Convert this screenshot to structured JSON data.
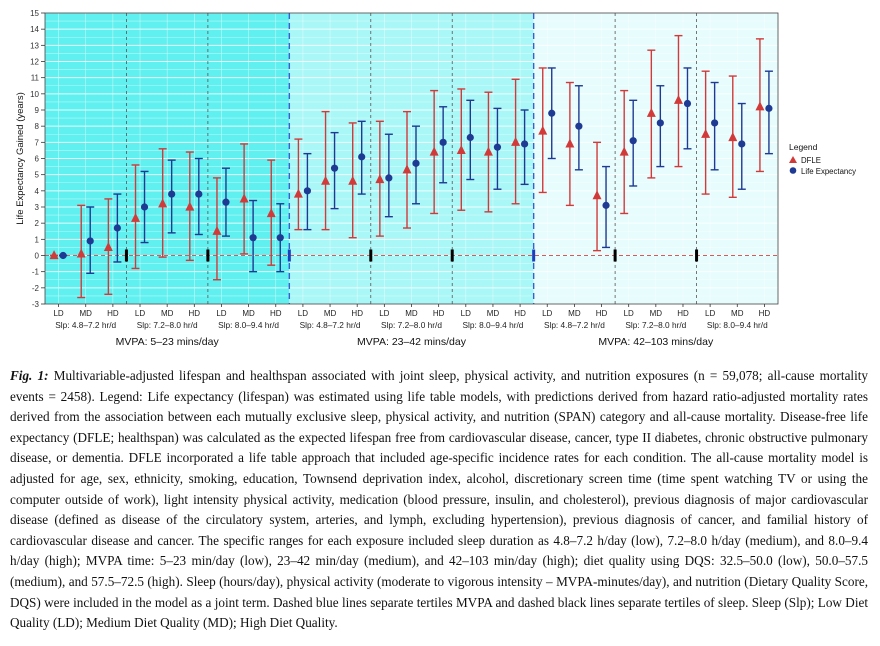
{
  "chart_data": {
    "type": "scatter",
    "title": "",
    "xlabel": "",
    "ylabel": "Life Expectancy Gained (years)",
    "ylim": [
      -3,
      15
    ],
    "yticks": [
      -3,
      -2,
      -1,
      0,
      1,
      2,
      3,
      4,
      5,
      6,
      7,
      8,
      9,
      10,
      11,
      12,
      13,
      14,
      15
    ],
    "grid": true,
    "legend": {
      "title": "Legend",
      "placement": "right",
      "entries": [
        {
          "name": "DFLE",
          "color": "#d23a3a",
          "marker": "triangle"
        },
        {
          "name": "Life Expectancy",
          "color": "#1f3a93",
          "marker": "circle"
        }
      ]
    },
    "diet_labels": [
      "LD",
      "MD",
      "HD"
    ],
    "mvpa_groups": [
      {
        "label": "MVPA: 5–23 mins/day",
        "color": "#5ff0ef"
      },
      {
        "label": "MVPA: 23–42 mins/day",
        "color": "#a9f7f7"
      },
      {
        "label": "MVPA: 42–103 mins/day",
        "color": "#e7fcfd"
      }
    ],
    "sleep_labels": [
      "Slp: 4.8–7.2 hr/d",
      "Slp: 7.2–8.0 hr/d",
      "Slp: 8.0–9.4 hr/d",
      "Slp: 4.8–7.2 hr/d",
      "Slp: 7.2–8.0 hr/d",
      "Slp: 8.0–9.4 hr/d",
      "Slp: 4.8–7.2 hr/d",
      "Slp: 7.2–8.0 hr/d",
      "Slp: 8.0–9.4 hr/d"
    ],
    "series": [
      {
        "name": "DFLE",
        "color": "#d23a3a",
        "values": [
          0.0,
          0.1,
          0.5,
          2.3,
          3.2,
          3.0,
          1.5,
          3.5,
          2.6,
          3.8,
          4.6,
          4.6,
          4.7,
          5.3,
          6.4,
          6.5,
          6.4,
          7.0,
          7.7,
          6.9,
          3.7,
          6.4,
          8.8,
          9.6,
          7.5,
          7.3,
          9.2
        ],
        "lower": [
          0.0,
          -2.6,
          -2.4,
          -0.8,
          -0.1,
          -0.3,
          -1.5,
          0.1,
          -0.6,
          1.6,
          1.6,
          1.1,
          1.2,
          1.7,
          2.6,
          2.8,
          2.7,
          3.2,
          3.9,
          3.1,
          0.3,
          2.6,
          4.8,
          5.5,
          3.8,
          3.6,
          5.2
        ],
        "upper": [
          0.0,
          3.1,
          3.5,
          5.6,
          6.6,
          6.4,
          4.8,
          6.9,
          5.9,
          7.2,
          8.9,
          8.2,
          8.3,
          8.9,
          10.2,
          10.3,
          10.1,
          10.9,
          11.6,
          10.7,
          7.0,
          10.2,
          12.7,
          13.6,
          11.4,
          11.1,
          13.4
        ]
      },
      {
        "name": "Life Expectancy",
        "color": "#1f3a93",
        "values": [
          0.0,
          0.9,
          1.7,
          3.0,
          3.8,
          3.8,
          3.3,
          1.1,
          1.1,
          4.0,
          5.4,
          6.1,
          4.8,
          5.7,
          7.0,
          7.3,
          6.7,
          6.9,
          8.8,
          8.0,
          3.1,
          7.1,
          8.2,
          9.4,
          8.2,
          6.9,
          9.1
        ],
        "lower": [
          0.0,
          -1.1,
          -0.4,
          0.8,
          1.4,
          1.3,
          1.2,
          -1.0,
          -1.0,
          1.6,
          2.9,
          3.8,
          2.4,
          3.2,
          4.5,
          4.7,
          4.1,
          4.4,
          6.0,
          5.3,
          0.5,
          4.3,
          5.5,
          6.6,
          5.3,
          4.1,
          6.3
        ],
        "upper": [
          0.0,
          3.0,
          3.8,
          5.2,
          5.9,
          6.0,
          5.4,
          3.4,
          3.2,
          6.3,
          7.6,
          8.3,
          7.5,
          8.0,
          9.2,
          9.6,
          9.1,
          9.0,
          11.6,
          10.5,
          5.5,
          9.6,
          10.5,
          11.6,
          10.7,
          9.4,
          11.4
        ]
      }
    ]
  },
  "caption": {
    "label": "Fig. 1:",
    "text": " Multivariable-adjusted lifespan and healthspan associated with joint sleep, physical activity, and nutrition exposures (n = 59,078; all-cause mortality events = 2458). Legend: Life expectancy (lifespan) was estimated using life table models, with predictions derived from hazard ratio-adjusted mortality rates derived from the association between each mutually exclusive sleep, physical activity, and nutrition (SPAN) category and all-cause mortality. Disease-free life expectancy (DFLE; healthspan) was calculated as the expected lifespan free from cardiovascular disease, cancer, type II diabetes, chronic obstructive pulmonary disease, or dementia. DFLE incorporated a life table approach that included age-specific incidence rates for each condition. The all-cause mortality model is adjusted for age, sex, ethnicity, smoking, education, Townsend deprivation index, alcohol, discretionary screen time (time spent watching TV or using the computer outside of work), light intensity physical activity, medication (blood pressure, insulin, and cholesterol), previous diagnosis of major cardiovascular disease (defined as disease of the circulatory system, arteries, and lymph, excluding hypertension), previous diagnosis of cancer, and familial history of cardiovascular disease and cancer. The specific ranges for each exposure included sleep duration as 4.8–7.2 h/day (low), 7.2–8.0 h/day (medium), and 8.0–9.4 h/day (high); MVPA time: 5–23 min/day (low), 23–42 min/day (medium), and 42–103 min/day (high); diet quality using DQS: 32.5–50.0 (low), 50.0–57.5 (medium), and 57.5–72.5 (high). Sleep (hours/day), physical activity (moderate to vigorous intensity – MVPA-minutes/day), and nutrition (Dietary Quality Score, DQS) were included in the model as a joint term. Dashed blue lines separate tertiles MVPA and dashed black lines separate tertiles of sleep. Sleep (Slp); Low Diet Quality (LD); Medium Diet Quality (MD); High Diet Quality."
  }
}
